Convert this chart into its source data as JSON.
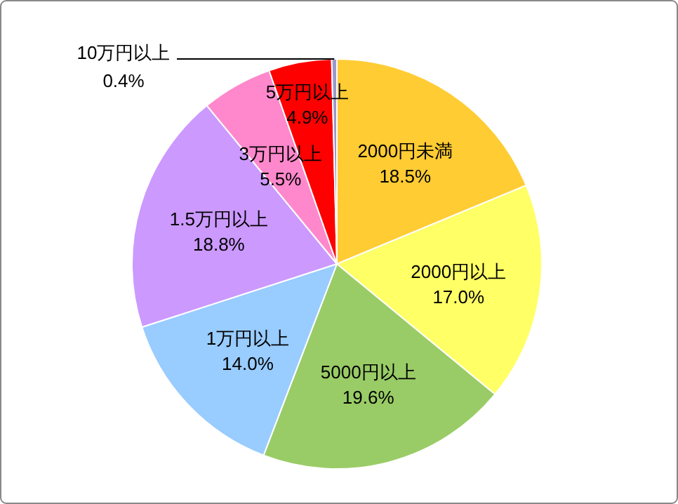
{
  "chart_data": {
    "type": "pie",
    "categories": [
      "2000円未満",
      "2000円以上",
      "5000円以上",
      "1万円以上",
      "1.5万円以上",
      "3万円以上",
      "5万円以上",
      "10万円以上"
    ],
    "values": [
      18.5,
      17.0,
      19.6,
      14.0,
      18.8,
      5.5,
      4.9,
      0.4
    ],
    "value_labels": [
      "18.5%",
      "17.0%",
      "19.6%",
      "14.0%",
      "18.8%",
      "5.5%",
      "4.9%",
      "0.4%"
    ],
    "colors": [
      "#ffcc33",
      "#ffff66",
      "#99cc66",
      "#99ccff",
      "#cc99ff",
      "#ff88cc",
      "#ff0000",
      "#9999cc"
    ]
  }
}
